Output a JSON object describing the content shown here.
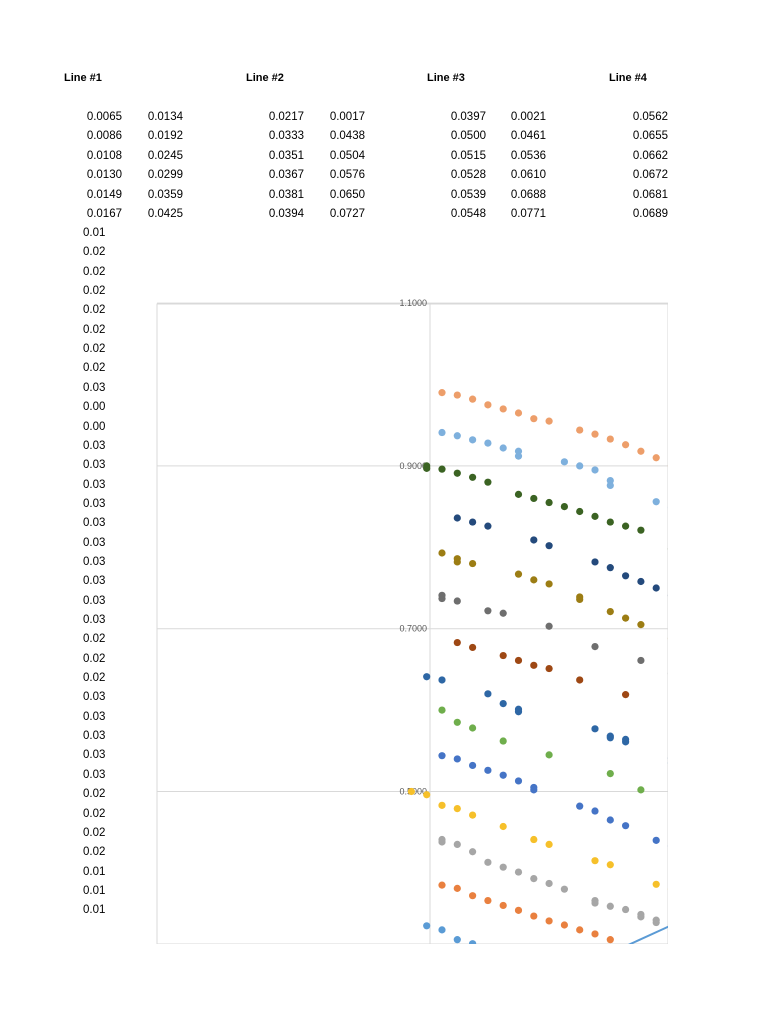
{
  "table": {
    "headers": [
      "Line #1",
      "Line #2",
      "Line #3",
      "Line #4"
    ],
    "rows": [
      [
        "0.0065",
        "0.0134",
        "0.0217",
        "0.0017",
        "0.0397",
        "0.0021",
        "0.0562"
      ],
      [
        "0.0086",
        "0.0192",
        "0.0333",
        "0.0438",
        "0.0500",
        "0.0461",
        "0.0655"
      ],
      [
        "0.0108",
        "0.0245",
        "0.0351",
        "0.0504",
        "0.0515",
        "0.0536",
        "0.0662"
      ],
      [
        "0.0130",
        "0.0299",
        "0.0367",
        "0.0576",
        "0.0528",
        "0.0610",
        "0.0672"
      ],
      [
        "0.0149",
        "0.0359",
        "0.0381",
        "0.0650",
        "0.0539",
        "0.0688",
        "0.0681"
      ],
      [
        "0.0167",
        "0.0425",
        "0.0394",
        "0.0727",
        "0.0548",
        "0.0771",
        "0.0689"
      ]
    ],
    "truncated_column": [
      "0.01",
      "0.02",
      "0.02",
      "0.02",
      "0.02",
      "0.02",
      "0.02",
      "0.02",
      "0.03",
      "0.00",
      "0.00",
      "0.03",
      "0.03",
      "0.03",
      "0.03",
      "0.03",
      "0.03",
      "0.03",
      "0.03",
      "0.03",
      "0.03",
      "0.02",
      "0.02",
      "0.02",
      "0.03",
      "0.03",
      "0.03",
      "0.03",
      "0.03",
      "0.02",
      "0.02",
      "0.02",
      "0.02",
      "0.01",
      "0.01",
      "0.01"
    ]
  },
  "chart_data": {
    "type": "scatter",
    "y_ticks": [
      "1.1000",
      "0.9000",
      "0.7000",
      "0.5000"
    ],
    "y_tick_values": [
      1.1,
      0.9,
      0.7,
      0.5
    ],
    "ylim_visible": [
      0.31,
      1.1
    ],
    "grid": true,
    "series": [
      {
        "color": "#ED9E6A",
        "points": [
          [
            0,
            0.99
          ],
          [
            1,
            0.987
          ],
          [
            2,
            0.982
          ],
          [
            3,
            0.975
          ],
          [
            4,
            0.97
          ],
          [
            5,
            0.965
          ],
          [
            6,
            0.958
          ],
          [
            7,
            0.955
          ],
          [
            9,
            0.944
          ],
          [
            10,
            0.939
          ],
          [
            11,
            0.933
          ],
          [
            12,
            0.926
          ],
          [
            13,
            0.918
          ],
          [
            14,
            0.91
          ],
          [
            15,
            0.9
          ]
        ]
      },
      {
        "color": "#7EB0DD",
        "points": [
          [
            0,
            0.941
          ],
          [
            1,
            0.937
          ],
          [
            2,
            0.932
          ],
          [
            3,
            0.928
          ],
          [
            4,
            0.922
          ],
          [
            5,
            0.918
          ],
          [
            5,
            0.912
          ],
          [
            8,
            0.905
          ],
          [
            9,
            0.9
          ],
          [
            10,
            0.895
          ],
          [
            11,
            0.882
          ],
          [
            11,
            0.876
          ],
          [
            14,
            0.856
          ],
          [
            15,
            0.849
          ]
        ]
      },
      {
        "color": "#3B6323",
        "points": [
          [
            -1,
            0.9
          ],
          [
            -1,
            0.897
          ],
          [
            0,
            0.896
          ],
          [
            1,
            0.891
          ],
          [
            2,
            0.886
          ],
          [
            3,
            0.88
          ],
          [
            5,
            0.865
          ],
          [
            6,
            0.86
          ],
          [
            7,
            0.855
          ],
          [
            8,
            0.85
          ],
          [
            9,
            0.844
          ],
          [
            10,
            0.838
          ],
          [
            11,
            0.831
          ],
          [
            12,
            0.826
          ],
          [
            13,
            0.821
          ],
          [
            15,
            0.798
          ],
          [
            16,
            0.791
          ]
        ]
      },
      {
        "color": "#244A7C",
        "points": [
          [
            1,
            0.836
          ],
          [
            2,
            0.831
          ],
          [
            3,
            0.826
          ],
          [
            6,
            0.809
          ],
          [
            7,
            0.802
          ],
          [
            10,
            0.782
          ],
          [
            11,
            0.775
          ],
          [
            12,
            0.765
          ],
          [
            13,
            0.758
          ],
          [
            14,
            0.75
          ],
          [
            15,
            0.741
          ]
        ]
      },
      {
        "color": "#9C7D14",
        "points": [
          [
            0,
            0.793
          ],
          [
            1,
            0.786
          ],
          [
            1,
            0.782
          ],
          [
            2,
            0.78
          ],
          [
            5,
            0.767
          ],
          [
            6,
            0.76
          ],
          [
            7,
            0.755
          ],
          [
            9,
            0.739
          ],
          [
            9,
            0.736
          ],
          [
            11,
            0.721
          ],
          [
            12,
            0.713
          ],
          [
            13,
            0.705
          ],
          [
            15,
            0.688
          ]
        ]
      },
      {
        "color": "#6E6E6E",
        "points": [
          [
            0,
            0.741
          ],
          [
            0,
            0.737
          ],
          [
            1,
            0.734
          ],
          [
            3,
            0.722
          ],
          [
            4,
            0.719
          ],
          [
            7,
            0.703
          ],
          [
            10,
            0.678
          ],
          [
            13,
            0.661
          ],
          [
            15,
            0.645
          ],
          [
            16,
            0.638
          ]
        ]
      },
      {
        "color": "#9E4814",
        "points": [
          [
            1,
            0.683
          ],
          [
            2,
            0.677
          ],
          [
            4,
            0.667
          ],
          [
            5,
            0.661
          ],
          [
            6,
            0.655
          ],
          [
            7,
            0.651
          ],
          [
            9,
            0.637
          ],
          [
            12,
            0.619
          ],
          [
            16,
            0.591
          ],
          [
            17,
            0.58
          ]
        ]
      },
      {
        "color": "#2E67A5",
        "points": [
          [
            -1,
            0.641
          ],
          [
            0,
            0.637
          ],
          [
            3,
            0.62
          ],
          [
            4,
            0.608
          ],
          [
            5,
            0.601
          ],
          [
            5,
            0.598
          ],
          [
            10,
            0.577
          ],
          [
            11,
            0.568
          ],
          [
            11,
            0.566
          ],
          [
            12,
            0.564
          ],
          [
            12,
            0.561
          ],
          [
            15,
            0.541
          ],
          [
            15,
            0.535
          ]
        ]
      },
      {
        "color": "#6FAE4C",
        "points": [
          [
            0,
            0.6
          ],
          [
            1,
            0.585
          ],
          [
            2,
            0.578
          ],
          [
            4,
            0.562
          ],
          [
            7,
            0.545
          ],
          [
            11,
            0.522
          ],
          [
            13,
            0.502
          ],
          [
            16,
            0.486
          ],
          [
            17,
            0.478
          ]
        ]
      },
      {
        "color": "#4574C6",
        "points": [
          [
            0,
            0.544
          ],
          [
            1,
            0.54
          ],
          [
            2,
            0.532
          ],
          [
            3,
            0.526
          ],
          [
            4,
            0.52
          ],
          [
            5,
            0.513
          ],
          [
            6,
            0.505
          ],
          [
            6,
            0.502
          ],
          [
            9,
            0.482
          ],
          [
            10,
            0.476
          ],
          [
            11,
            0.465
          ],
          [
            12,
            0.458
          ],
          [
            14,
            0.44
          ],
          [
            15,
            0.433
          ],
          [
            16,
            0.427
          ],
          [
            17,
            0.42
          ]
        ]
      },
      {
        "color": "#F6C02A",
        "points": [
          [
            -2,
            0.5
          ],
          [
            -1,
            0.496
          ],
          [
            0,
            0.483
          ],
          [
            1,
            0.479
          ],
          [
            2,
            0.471
          ],
          [
            4,
            0.457
          ],
          [
            6,
            0.441
          ],
          [
            7,
            0.435
          ],
          [
            10,
            0.415
          ],
          [
            11,
            0.41
          ],
          [
            14,
            0.386
          ],
          [
            15,
            0.38
          ],
          [
            16,
            0.373
          ],
          [
            17,
            0.366
          ],
          [
            18,
            0.359
          ]
        ]
      },
      {
        "color": "#A6A6A6",
        "points": [
          [
            0,
            0.441
          ],
          [
            0,
            0.438
          ],
          [
            1,
            0.435
          ],
          [
            2,
            0.426
          ],
          [
            3,
            0.413
          ],
          [
            4,
            0.407
          ],
          [
            5,
            0.401
          ],
          [
            6,
            0.393
          ],
          [
            7,
            0.387
          ],
          [
            8,
            0.38
          ],
          [
            10,
            0.366
          ],
          [
            10,
            0.363
          ],
          [
            11,
            0.359
          ],
          [
            12,
            0.355
          ],
          [
            13,
            0.349
          ],
          [
            13,
            0.346
          ],
          [
            14,
            0.342
          ],
          [
            14,
            0.339
          ],
          [
            15,
            0.336
          ],
          [
            16,
            0.332
          ],
          [
            16,
            0.325
          ],
          [
            17,
            0.32
          ],
          [
            17,
            0.317
          ],
          [
            18,
            0.313
          ],
          [
            18,
            0.31
          ]
        ]
      },
      {
        "color": "#E9803F",
        "points": [
          [
            0,
            0.385
          ],
          [
            1,
            0.381
          ],
          [
            2,
            0.372
          ],
          [
            3,
            0.366
          ],
          [
            4,
            0.36
          ],
          [
            5,
            0.354
          ],
          [
            6,
            0.347
          ],
          [
            7,
            0.341
          ],
          [
            8,
            0.336
          ],
          [
            9,
            0.33
          ],
          [
            10,
            0.325
          ],
          [
            11,
            0.318
          ]
        ]
      },
      {
        "color": "#5A9BD5",
        "points": [
          [
            -1,
            0.335
          ],
          [
            0,
            0.33
          ],
          [
            1,
            0.318
          ],
          [
            2,
            0.313
          ]
        ]
      }
    ],
    "trend_line": {
      "color": "#5B9BD5",
      "from": [
        12,
        0.31
      ],
      "to": [
        19,
        0.37
      ]
    }
  }
}
